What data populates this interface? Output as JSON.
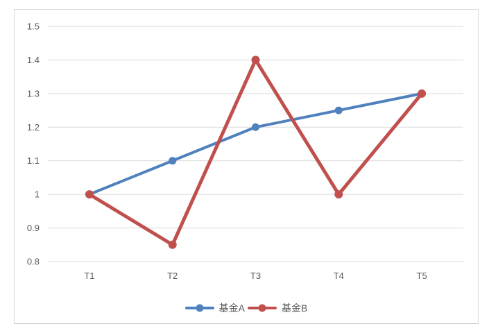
{
  "chart_data": {
    "type": "line",
    "categories": [
      "T1",
      "T2",
      "T3",
      "T4",
      "T5"
    ],
    "series": [
      {
        "name": "基金A",
        "color": "#4F81BD",
        "values": [
          1.0,
          1.1,
          1.2,
          1.25,
          1.3
        ],
        "line_width": 4,
        "marker": "circle",
        "marker_radius": 5.5
      },
      {
        "name": "基金B",
        "color": "#C0504D",
        "values": [
          1.0,
          0.85,
          1.4,
          1.0,
          1.3
        ],
        "line_width": 5,
        "marker": "circle",
        "marker_radius": 6
      }
    ],
    "title": "",
    "xlabel": "",
    "ylabel": "",
    "ylim": [
      0.8,
      1.5
    ],
    "ytick_step": 0.1,
    "ytick_labels": [
      "0.8",
      "0.9",
      "1",
      "1.1",
      "1.2",
      "1.3",
      "1.4",
      "1.5"
    ],
    "grid": "horizontal",
    "gridline_color": "#d9d9d9",
    "tick_label_color": "#595959",
    "tick_font_size": 13,
    "legend_position": "bottom",
    "background_color": "#ffffff",
    "border_color": "#d9d9d9"
  }
}
